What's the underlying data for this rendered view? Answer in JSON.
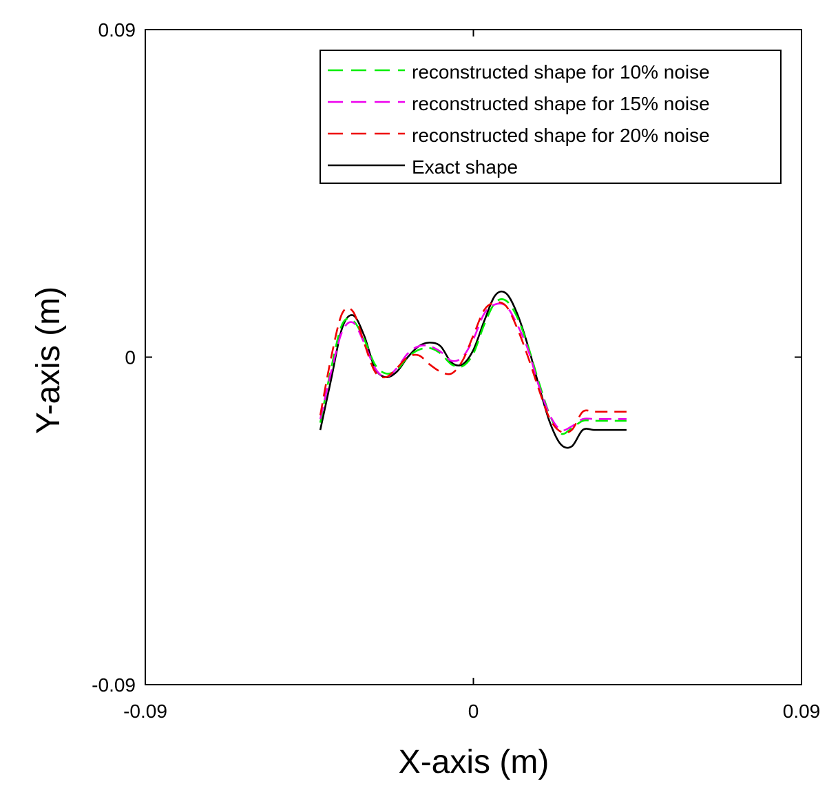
{
  "chart_data": {
    "type": "line",
    "title": "",
    "xlabel": "X-axis (m)",
    "ylabel": "Y-axis (m)",
    "xlim": [
      -0.09,
      0.09
    ],
    "ylim": [
      -0.09,
      0.09
    ],
    "xticks": [
      -0.09,
      0,
      0.09
    ],
    "yticks": [
      -0.09,
      0,
      0.09
    ],
    "xtick_labels": [
      "-0.09",
      "0",
      "0.09"
    ],
    "ytick_labels": [
      "-0.09",
      "0",
      "0.09"
    ],
    "grid": false,
    "legend_position": "top-right",
    "series": [
      {
        "name": "reconstructed shape for 10% noise",
        "color": "#00ee00",
        "style": "dashed",
        "x": [
          -0.042,
          -0.039,
          -0.036,
          -0.033,
          -0.03,
          -0.027,
          -0.024,
          -0.021,
          -0.018,
          -0.015,
          -0.012,
          -0.009,
          -0.006,
          -0.003,
          0.0,
          0.003,
          0.006,
          0.009,
          0.012,
          0.015,
          0.018,
          0.021,
          0.024,
          0.027,
          0.03,
          0.033,
          0.036,
          0.039,
          0.042
        ],
        "y": [
          -0.018,
          -0.003,
          0.009,
          0.01,
          0.005,
          -0.002,
          -0.0045,
          -0.0035,
          0.0,
          0.002,
          0.0025,
          0.001,
          -0.002,
          -0.0025,
          0.001,
          0.009,
          0.015,
          0.0155,
          0.011,
          0.003,
          -0.007,
          -0.016,
          -0.021,
          -0.0195,
          -0.0175,
          -0.0175,
          -0.0175,
          -0.0175,
          -0.0175
        ]
      },
      {
        "name": "reconstructed shape for 15% noise",
        "color": "#ee00ee",
        "style": "dashed",
        "x": [
          -0.042,
          -0.039,
          -0.036,
          -0.033,
          -0.03,
          -0.027,
          -0.024,
          -0.021,
          -0.018,
          -0.015,
          -0.012,
          -0.009,
          -0.006,
          -0.003,
          0.0,
          0.003,
          0.006,
          0.009,
          0.012,
          0.015,
          0.018,
          0.021,
          0.024,
          0.027,
          0.03,
          0.033,
          0.036,
          0.039,
          0.042
        ],
        "y": [
          -0.017,
          -0.004,
          0.007,
          0.0095,
          0.004,
          -0.003,
          -0.0055,
          -0.003,
          0.001,
          0.003,
          0.003,
          0.0015,
          -0.001,
          0.0,
          0.005,
          0.012,
          0.0145,
          0.014,
          0.009,
          0.002,
          -0.008,
          -0.016,
          -0.02,
          -0.019,
          -0.017,
          -0.017,
          -0.017,
          -0.017,
          -0.017
        ]
      },
      {
        "name": "reconstructed shape for 20% noise",
        "color": "#ee0000",
        "style": "dashed",
        "x": [
          -0.042,
          -0.039,
          -0.036,
          -0.033,
          -0.03,
          -0.027,
          -0.024,
          -0.021,
          -0.018,
          -0.015,
          -0.012,
          -0.009,
          -0.006,
          -0.003,
          0.0,
          0.003,
          0.006,
          0.009,
          0.012,
          0.015,
          0.018,
          0.021,
          0.024,
          0.027,
          0.03,
          0.033,
          0.036,
          0.039,
          0.042
        ],
        "y": [
          -0.016,
          0.0,
          0.012,
          0.0125,
          0.004,
          -0.004,
          -0.0055,
          -0.003,
          0.0,
          0.0005,
          -0.002,
          -0.004,
          -0.0045,
          -0.001,
          0.006,
          0.013,
          0.015,
          0.014,
          0.008,
          0.0,
          -0.009,
          -0.017,
          -0.0205,
          -0.02,
          -0.015,
          -0.015,
          -0.015,
          -0.015,
          -0.015
        ]
      },
      {
        "name": "Exact shape",
        "color": "#000000",
        "style": "solid",
        "x": [
          -0.042,
          -0.039,
          -0.036,
          -0.033,
          -0.03,
          -0.027,
          -0.024,
          -0.021,
          -0.018,
          -0.015,
          -0.012,
          -0.009,
          -0.006,
          -0.003,
          0.0,
          0.003,
          0.006,
          0.009,
          0.012,
          0.015,
          0.018,
          0.021,
          0.024,
          0.027,
          0.03,
          0.033,
          0.036,
          0.039,
          0.042
        ],
        "y": [
          -0.02,
          -0.006,
          0.008,
          0.0115,
          0.006,
          -0.003,
          -0.0055,
          -0.004,
          0.0,
          0.003,
          0.004,
          0.003,
          -0.0015,
          -0.002,
          0.002,
          0.01,
          0.017,
          0.0175,
          0.012,
          0.003,
          -0.008,
          -0.018,
          -0.024,
          -0.0245,
          -0.02,
          -0.02,
          -0.02,
          -0.02,
          -0.02
        ]
      }
    ]
  }
}
